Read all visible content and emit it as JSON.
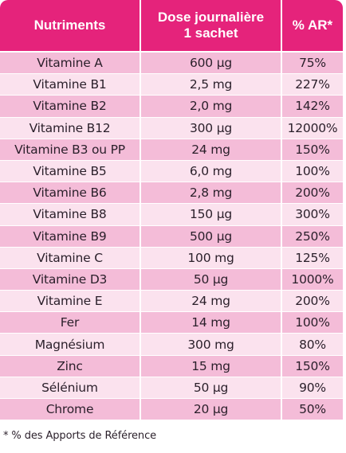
{
  "table": {
    "headers": {
      "nutrients": "Nutriments",
      "dose_line1": "Dose journalière",
      "dose_line2": "1 sachet",
      "ar": "% AR*"
    },
    "rows": [
      {
        "name": "Vitamine A",
        "dose": "600 µg",
        "ar": "75%"
      },
      {
        "name": "Vitamine B1",
        "dose": "2,5 mg",
        "ar": "227%"
      },
      {
        "name": "Vitamine B2",
        "dose": "2,0 mg",
        "ar": "142%"
      },
      {
        "name": "Vitamine  B12",
        "dose": "300  µg",
        "ar": "12000%"
      },
      {
        "name": "Vitamine B3 ou PP",
        "dose": "24 mg",
        "ar": "150%"
      },
      {
        "name": "Vitamine B5",
        "dose": "6,0 mg",
        "ar": "100%"
      },
      {
        "name": "Vitamine B6",
        "dose": "2,8 mg",
        "ar": "200%"
      },
      {
        "name": "Vitamine B8",
        "dose": "150 µg",
        "ar": "300%"
      },
      {
        "name": "Vitamine B9",
        "dose": "500 µg",
        "ar": "250%"
      },
      {
        "name": "Vitamine C",
        "dose": "100 mg",
        "ar": "125%"
      },
      {
        "name": "Vitamine D3",
        "dose": "50 µg",
        "ar": "1000%"
      },
      {
        "name": "Vitamine E",
        "dose": "24 mg",
        "ar": "200%"
      },
      {
        "name": "Fer",
        "dose": "14 mg",
        "ar": "100%"
      },
      {
        "name": "Magnésium",
        "dose": "300 mg",
        "ar": "80%"
      },
      {
        "name": "Zinc",
        "dose": "15 mg",
        "ar": "150%"
      },
      {
        "name": "Sélénium",
        "dose": "50 µg",
        "ar": "90%"
      },
      {
        "name": "Chrome",
        "dose": "20 µg",
        "ar": "50%"
      }
    ]
  },
  "footnote": "* % des Apports de Référence",
  "colors": {
    "header": "#e5237b",
    "row_dark": "#f4bcd8",
    "row_light": "#fbe2ee"
  }
}
